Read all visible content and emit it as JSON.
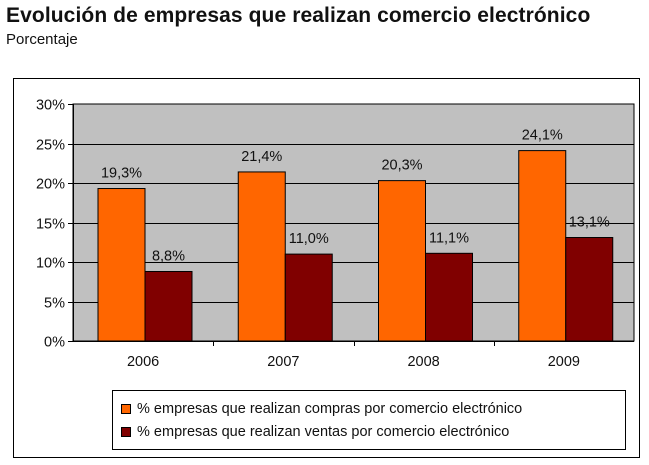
{
  "header": {
    "title": "Evolución de empresas que realizan comercio electrónico",
    "subtitle": "Porcentaje"
  },
  "chart_data": {
    "type": "bar",
    "title": "Evolución de empresas que realizan comercio electrónico",
    "subtitle": "Porcentaje",
    "categories": [
      "2006",
      "2007",
      "2008",
      "2009"
    ],
    "series": [
      {
        "name": "% empresas que realizan compras por comercio electrónico",
        "values": [
          19.3,
          21.4,
          20.3,
          24.1
        ],
        "labels": [
          "19,3%",
          "21,4%",
          "20,3%",
          "24,1%"
        ],
        "color": "#ff6600"
      },
      {
        "name": "% empresas que realizan ventas por comercio electrónico",
        "values": [
          8.8,
          11.0,
          11.1,
          13.1
        ],
        "labels": [
          "8,8%",
          "11,0%",
          "11,1%",
          "13,1%"
        ],
        "color": "#800000"
      }
    ],
    "yticks": [
      "0%",
      "5%",
      "10%",
      "15%",
      "20%",
      "25%",
      "30%"
    ],
    "ylim": [
      0,
      30
    ],
    "ystep": 5,
    "grid": true,
    "plot_background": "#c0c0c0",
    "legend_position": "bottom"
  }
}
